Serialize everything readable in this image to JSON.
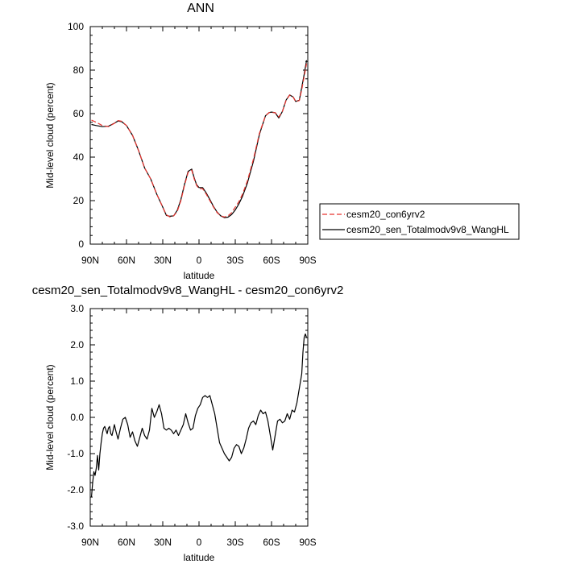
{
  "chart_data": [
    {
      "type": "line",
      "title": "ANN",
      "xlabel": "latitude",
      "ylabel": "Mid-level cloud (percent)",
      "xlim": [
        90,
        -90
      ],
      "ylim": [
        0,
        100
      ],
      "x_ticks": [
        {
          "value": 90,
          "label": "90N"
        },
        {
          "value": 60,
          "label": "60N"
        },
        {
          "value": 30,
          "label": "30N"
        },
        {
          "value": 0,
          "label": "0"
        },
        {
          "value": -30,
          "label": "30S"
        },
        {
          "value": -60,
          "label": "60S"
        },
        {
          "value": -90,
          "label": "90S"
        }
      ],
      "y_ticks": [
        {
          "value": 0,
          "label": "0"
        },
        {
          "value": 20,
          "label": "20"
        },
        {
          "value": 40,
          "label": "40"
        },
        {
          "value": 60,
          "label": "60"
        },
        {
          "value": 80,
          "label": "80"
        },
        {
          "value": 100,
          "label": "100"
        }
      ],
      "legend_placement": "right",
      "series": [
        {
          "name": "cesm20_con6yrv2",
          "color": "#e8332e",
          "dash": "dashed",
          "x": [
            89,
            85,
            80,
            75,
            70,
            67,
            64,
            60,
            55,
            50,
            45,
            40,
            35,
            30,
            27,
            24,
            21,
            18,
            15,
            12,
            9,
            6,
            4,
            2,
            0,
            -3,
            -6,
            -9,
            -12,
            -15,
            -18,
            -21,
            -24,
            -27,
            -30,
            -33,
            -36,
            -40,
            -45,
            -50,
            -55,
            -58,
            -60,
            -63,
            -66,
            -69,
            -72,
            -75,
            -78,
            -80,
            -83,
            -85,
            -87,
            -89
          ],
          "y": [
            57,
            56,
            54.5,
            54,
            55.5,
            56.8,
            56.5,
            54.5,
            50,
            43,
            35,
            30,
            23,
            17,
            13.5,
            12.5,
            13,
            15,
            20,
            27,
            33,
            34,
            30,
            27,
            25.5,
            25.5,
            23,
            20,
            17,
            14.5,
            13,
            12.5,
            13,
            14.5,
            17,
            19.5,
            23,
            29,
            39,
            51,
            59,
            60.5,
            60.5,
            60.5,
            58.5,
            61,
            66,
            68.5,
            67.5,
            65.5,
            66,
            71,
            77,
            83
          ]
        },
        {
          "name": "cesm20_sen_Totalmodv9v8_WangHL",
          "color": "#000000",
          "dash": "solid",
          "x": [
            89,
            85,
            80,
            75,
            70,
            67,
            64,
            60,
            55,
            50,
            45,
            40,
            35,
            30,
            27,
            24,
            21,
            18,
            15,
            12,
            9,
            6,
            4,
            2,
            0,
            -3,
            -6,
            -9,
            -12,
            -15,
            -18,
            -21,
            -24,
            -27,
            -30,
            -33,
            -36,
            -40,
            -45,
            -50,
            -55,
            -58,
            -60,
            -63,
            -66,
            -69,
            -72,
            -75,
            -78,
            -80,
            -83,
            -85,
            -87,
            -89
          ],
          "y": [
            55,
            54.5,
            54,
            54.2,
            55.6,
            56.6,
            56.3,
            54.5,
            50,
            43,
            35,
            30,
            23,
            17,
            13.2,
            12.8,
            13,
            15.5,
            20.5,
            27.5,
            33.5,
            34.5,
            30.5,
            27.3,
            26,
            26,
            23.5,
            20.5,
            17.3,
            14.7,
            13,
            12.2,
            12.4,
            13.6,
            15.7,
            18.5,
            22,
            28,
            38,
            50.5,
            59,
            60.5,
            60.7,
            60.4,
            58,
            61,
            66.2,
            68.6,
            67.6,
            65.6,
            66.2,
            72,
            78,
            84.5
          ]
        }
      ]
    },
    {
      "type": "line",
      "title": "cesm20_sen_Totalmodv9v8_WangHL - cesm20_con6yrv2",
      "xlabel": "latitude",
      "ylabel": "Mid-level cloud (percent)",
      "xlim": [
        90,
        -90
      ],
      "ylim": [
        -3,
        3
      ],
      "x_ticks": [
        {
          "value": 90,
          "label": "90N"
        },
        {
          "value": 60,
          "label": "60N"
        },
        {
          "value": 30,
          "label": "30N"
        },
        {
          "value": 0,
          "label": "0"
        },
        {
          "value": -30,
          "label": "30S"
        },
        {
          "value": -60,
          "label": "60S"
        },
        {
          "value": -90,
          "label": "90S"
        }
      ],
      "y_ticks": [
        {
          "value": -3,
          "label": "-3.0"
        },
        {
          "value": -2,
          "label": "-2.0"
        },
        {
          "value": -1,
          "label": "-1.0"
        },
        {
          "value": 0,
          "label": "0.0"
        },
        {
          "value": 1,
          "label": "1.0"
        },
        {
          "value": 2,
          "label": "2.0"
        },
        {
          "value": 3,
          "label": "3.0"
        }
      ],
      "series": [
        {
          "color": "#000000",
          "dash": "solid",
          "x": [
            89,
            88,
            87,
            86,
            85,
            84,
            83,
            82,
            81,
            80,
            79,
            78,
            77,
            76,
            75,
            74,
            73,
            72,
            71,
            70,
            69,
            67,
            65,
            63,
            61,
            59,
            57,
            55,
            53,
            51,
            49,
            47,
            45,
            43,
            41,
            39,
            37,
            35,
            33,
            31,
            29,
            27,
            25,
            23,
            21,
            19,
            17,
            15,
            13,
            11,
            9,
            7,
            5,
            3,
            1,
            -1,
            -3,
            -5,
            -7,
            -9,
            -11,
            -13,
            -15,
            -17,
            -19,
            -21,
            -23,
            -25,
            -27,
            -29,
            -31,
            -33,
            -35,
            -37,
            -39,
            -41,
            -43,
            -45,
            -47,
            -49,
            -51,
            -53,
            -55,
            -57,
            -59,
            -61,
            -63,
            -65,
            -67,
            -69,
            -71,
            -73,
            -75,
            -77,
            -79,
            -81,
            -83,
            -85,
            -86,
            -87,
            -88,
            -89
          ],
          "y": [
            -2.2,
            -1.8,
            -1.5,
            -1.6,
            -1.4,
            -1.05,
            -1.45,
            -1.0,
            -0.7,
            -0.45,
            -0.3,
            -0.25,
            -0.35,
            -0.45,
            -0.3,
            -0.25,
            -0.45,
            -0.5,
            -0.35,
            -0.2,
            -0.35,
            -0.6,
            -0.3,
            -0.05,
            0,
            -0.2,
            -0.55,
            -0.4,
            -0.65,
            -0.8,
            -0.55,
            -0.3,
            -0.5,
            -0.6,
            -0.35,
            0.25,
            0,
            0.15,
            0.35,
            0.1,
            -0.3,
            -0.35,
            -0.3,
            -0.35,
            -0.45,
            -0.35,
            -0.5,
            -0.35,
            -0.2,
            0.1,
            -0.15,
            -0.35,
            -0.3,
            0.05,
            0.25,
            0.35,
            0.55,
            0.6,
            0.55,
            0.6,
            0.35,
            0.1,
            -0.3,
            -0.7,
            -0.85,
            -1.0,
            -1.1,
            -1.2,
            -1.1,
            -0.85,
            -0.75,
            -0.8,
            -1.0,
            -0.85,
            -0.6,
            -0.3,
            -0.15,
            -0.1,
            -0.2,
            0.05,
            0.2,
            0.1,
            0.15,
            -0.1,
            -0.5,
            -0.9,
            -0.5,
            -0.1,
            -0.05,
            -0.15,
            -0.1,
            0.1,
            -0.05,
            0.2,
            0.15,
            0.4,
            0.8,
            1.2,
            1.8,
            2.2,
            2.3,
            2.2
          ]
        }
      ]
    }
  ]
}
